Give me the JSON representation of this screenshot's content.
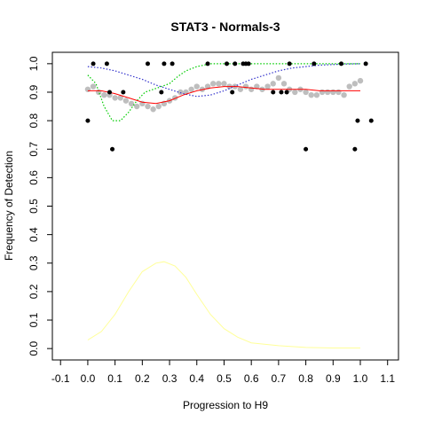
{
  "chart_data": {
    "type": "scatter",
    "title": "STAT3 - Normals-3",
    "xlabel": "Progression to H9",
    "ylabel": "Frequency of Detection",
    "xlim": [
      -0.13,
      1.14
    ],
    "ylim": [
      -0.04,
      1.04
    ],
    "x_ticks": [
      -0.1,
      0.0,
      0.1,
      0.2,
      0.3,
      0.4,
      0.5,
      0.6,
      0.7,
      0.8,
      0.9,
      1.0,
      1.1
    ],
    "x_tick_labels": [
      "-0.1",
      "0.0",
      "0.1",
      "0.2",
      "0.3",
      "0.4",
      "0.5",
      "0.6",
      "0.7",
      "0.8",
      "0.9",
      "1.0",
      "1.1"
    ],
    "y_ticks": [
      0.0,
      0.1,
      0.2,
      0.3,
      0.4,
      0.5,
      0.6,
      0.7,
      0.8,
      0.9,
      1.0
    ],
    "y_tick_labels": [
      "0.0",
      "0.1",
      "0.2",
      "0.3",
      "0.4",
      "0.5",
      "0.6",
      "0.7",
      "0.8",
      "0.9",
      "1.0"
    ],
    "grid": false,
    "colors": {
      "points": "#000000",
      "smooth_points": "#bebebe",
      "red_fit": "#ff0000",
      "green_fit": "#00cc00",
      "blue_fit": "#3333cc",
      "yellow_density": "#ffff99"
    },
    "observed_points": {
      "x": [
        0.0,
        0.02,
        0.07,
        0.08,
        0.09,
        0.13,
        0.22,
        0.27,
        0.28,
        0.31,
        0.44,
        0.51,
        0.53,
        0.54,
        0.57,
        0.58,
        0.59,
        0.68,
        0.71,
        0.73,
        0.74,
        0.8,
        0.83,
        0.93,
        0.98,
        0.99,
        1.02,
        1.04
      ],
      "y": [
        0.8,
        1.0,
        1.0,
        0.9,
        0.7,
        0.9,
        1.0,
        0.9,
        1.0,
        1.0,
        1.0,
        1.0,
        0.9,
        1.0,
        1.0,
        1.0,
        1.0,
        0.9,
        0.9,
        0.9,
        1.0,
        0.7,
        1.0,
        1.0,
        0.7,
        0.8,
        1.0,
        0.8
      ]
    },
    "smoothed_points": {
      "x": [
        0.0,
        0.02,
        0.04,
        0.06,
        0.08,
        0.1,
        0.12,
        0.14,
        0.16,
        0.18,
        0.2,
        0.22,
        0.24,
        0.26,
        0.28,
        0.3,
        0.32,
        0.34,
        0.36,
        0.38,
        0.4,
        0.42,
        0.44,
        0.46,
        0.48,
        0.5,
        0.52,
        0.54,
        0.56,
        0.58,
        0.6,
        0.62,
        0.64,
        0.66,
        0.68,
        0.7,
        0.72,
        0.74,
        0.76,
        0.78,
        0.8,
        0.82,
        0.84,
        0.86,
        0.88,
        0.9,
        0.92,
        0.94,
        0.96,
        0.98,
        1.0
      ],
      "y": [
        0.91,
        0.92,
        0.9,
        0.89,
        0.89,
        0.88,
        0.88,
        0.87,
        0.86,
        0.85,
        0.86,
        0.85,
        0.84,
        0.85,
        0.86,
        0.87,
        0.88,
        0.9,
        0.9,
        0.91,
        0.92,
        0.91,
        0.92,
        0.93,
        0.93,
        0.93,
        0.92,
        0.92,
        0.91,
        0.92,
        0.91,
        0.92,
        0.91,
        0.92,
        0.93,
        0.95,
        0.93,
        0.91,
        0.9,
        0.91,
        0.9,
        0.89,
        0.89,
        0.9,
        0.9,
        0.9,
        0.9,
        0.89,
        0.92,
        0.93,
        0.94
      ]
    },
    "red_fit": {
      "x": [
        0.0,
        0.05,
        0.1,
        0.15,
        0.2,
        0.25,
        0.3,
        0.35,
        0.4,
        0.45,
        0.5,
        0.55,
        0.6,
        0.65,
        0.7,
        0.75,
        0.8,
        0.85,
        0.9,
        0.95,
        1.0
      ],
      "y": [
        0.905,
        0.905,
        0.895,
        0.88,
        0.865,
        0.86,
        0.87,
        0.89,
        0.905,
        0.915,
        0.92,
        0.92,
        0.915,
        0.91,
        0.91,
        0.91,
        0.91,
        0.905,
        0.905,
        0.905,
        0.905
      ]
    },
    "green_fit": {
      "x": [
        0.0,
        0.03,
        0.06,
        0.09,
        0.12,
        0.15,
        0.18,
        0.21,
        0.24,
        0.27,
        0.3,
        0.33,
        0.36,
        0.4,
        0.45,
        0.5,
        0.6,
        0.7,
        0.8,
        0.9,
        1.0
      ],
      "y": [
        0.96,
        0.93,
        0.85,
        0.8,
        0.8,
        0.83,
        0.87,
        0.9,
        0.91,
        0.92,
        0.93,
        0.955,
        0.975,
        0.99,
        1.0,
        1.0,
        1.0,
        1.0,
        1.0,
        1.0,
        1.0
      ]
    },
    "blue_fit": {
      "x": [
        0.0,
        0.05,
        0.1,
        0.15,
        0.2,
        0.25,
        0.3,
        0.35,
        0.4,
        0.45,
        0.5,
        0.55,
        0.6,
        0.65,
        0.7,
        0.75,
        0.8,
        0.85,
        0.9,
        0.95,
        1.0
      ],
      "y": [
        0.99,
        0.985,
        0.975,
        0.96,
        0.945,
        0.925,
        0.91,
        0.895,
        0.885,
        0.89,
        0.905,
        0.925,
        0.945,
        0.96,
        0.975,
        0.985,
        0.99,
        0.995,
        0.997,
        0.999,
        1.0
      ]
    },
    "yellow_density": {
      "x": [
        0.0,
        0.05,
        0.1,
        0.15,
        0.2,
        0.25,
        0.28,
        0.32,
        0.36,
        0.4,
        0.45,
        0.5,
        0.55,
        0.6,
        0.7,
        0.8,
        0.9,
        1.0
      ],
      "y": [
        0.03,
        0.06,
        0.12,
        0.2,
        0.27,
        0.3,
        0.305,
        0.29,
        0.25,
        0.19,
        0.12,
        0.07,
        0.04,
        0.02,
        0.01,
        0.004,
        0.002,
        0.002
      ]
    }
  }
}
